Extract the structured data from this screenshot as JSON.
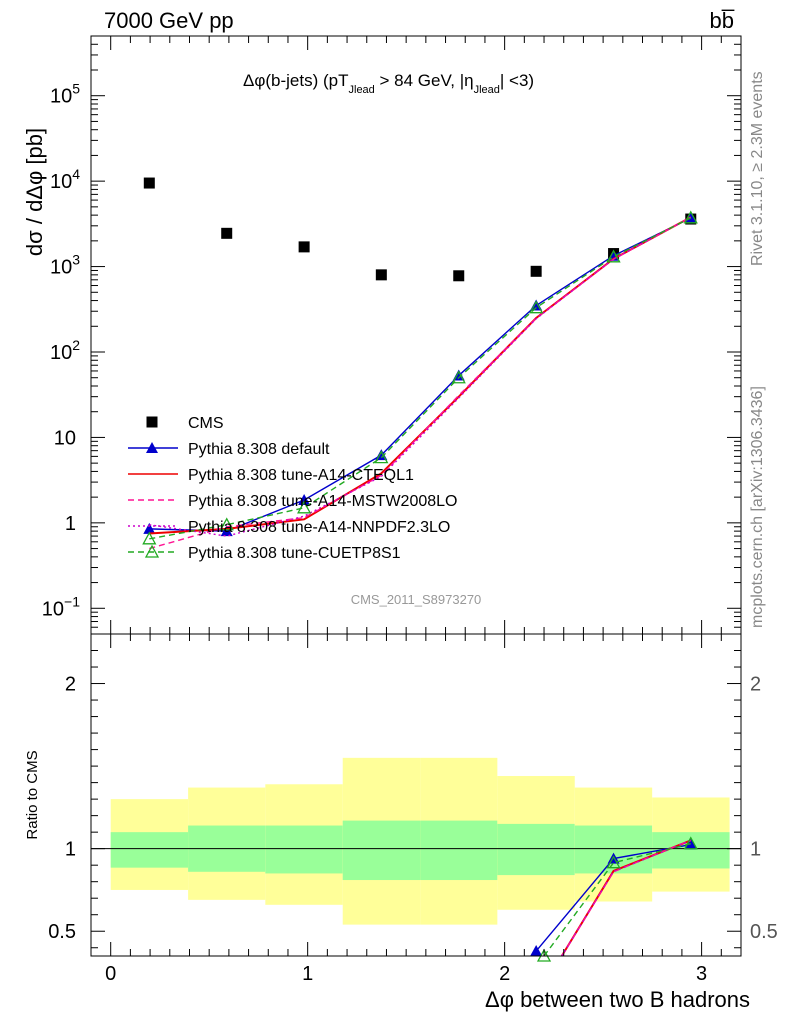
{
  "header": {
    "left": "7000 GeV pp",
    "right": "bb̅"
  },
  "side_text": {
    "rivet": "Rivet 3.1.10, ≥ 2.3M events",
    "mcplots": "mcplots.cern.ch [arXiv:1306.3436]"
  },
  "chart_data": [
    {
      "type": "line",
      "title": "Δφ(b-jets) (pT_Jlead > 84 GeV, |η_Jlead| <3)",
      "title_parts": {
        "p1": "Δφ(b-jets) (pT",
        "sub1": "Jlead",
        "p2": " >  84 GeV, |η",
        "sub2": "Jlead",
        "p3": "| <3)"
      },
      "watermark": "CMS_2011_S8973270",
      "ylabel": "dσ / dΔφ [pb]",
      "yscale": "log",
      "ylim": [
        0.05,
        500000
      ],
      "xlim": [
        -0.1,
        3.2
      ],
      "y_ticks": [
        {
          "v": 0.1,
          "base": "10",
          "exp": "−1"
        },
        {
          "v": 1,
          "base": "1",
          "exp": ""
        },
        {
          "v": 10,
          "base": "10",
          "exp": ""
        },
        {
          "v": 100,
          "base": "10",
          "exp": "2"
        },
        {
          "v": 1000,
          "base": "10",
          "exp": "3"
        },
        {
          "v": 10000,
          "base": "10",
          "exp": "4"
        },
        {
          "v": 100000,
          "base": "10",
          "exp": "5"
        }
      ],
      "x": [
        0.196,
        0.589,
        0.982,
        1.374,
        1.767,
        2.16,
        2.553,
        2.945
      ],
      "legend_position": "lower-left",
      "series": [
        {
          "name": "CMS",
          "color": "#000000",
          "style": "data",
          "marker": "square",
          "values": [
            9500,
            2450,
            1700,
            800,
            780,
            880,
            1420,
            3600
          ]
        },
        {
          "name": "Pythia 8.308 default",
          "color": "#0000cc",
          "style": "solid",
          "marker": "triangle",
          "values": [
            0.85,
            0.8,
            1.85,
            6.2,
            53,
            350,
            1340,
            3700
          ]
        },
        {
          "name": "Pythia 8.308 tune-A14-CTEQL1",
          "color": "#ee0000",
          "style": "solid",
          "marker": "none",
          "values": [
            0.75,
            0.85,
            1.1,
            3.8,
            30,
            250,
            1230,
            3780
          ]
        },
        {
          "name": "Pythia 8.308 tune-A14-MSTW2008LO",
          "color": "#ff1493",
          "style": "dashed",
          "marker": "none",
          "values": [
            0.5,
            0.9,
            1.15,
            3.6,
            31,
            248,
            1220,
            3790
          ]
        },
        {
          "name": "Pythia 8.308 tune-A14-NNPDF2.3LO",
          "color": "#cc00cc",
          "style": "dotted",
          "marker": "none",
          "values": [
            0.95,
            0.7,
            1.2,
            3.5,
            29,
            245,
            1225,
            3770
          ]
        },
        {
          "name": "Pythia 8.308 tune-CUETP8S1",
          "color": "#22aa22",
          "style": "dashed",
          "marker": "open-triangle",
          "values": [
            0.65,
            0.95,
            1.5,
            5.8,
            50,
            330,
            1300,
            3720
          ]
        }
      ]
    },
    {
      "type": "line",
      "ylabel": "Ratio to CMS",
      "xlabel": "Δφ between two B hadrons",
      "ylim": [
        0.35,
        2.3
      ],
      "xlim": [
        -0.1,
        3.2
      ],
      "x_ticks": [
        0,
        1,
        2,
        3
      ],
      "y_ticks": [
        0.5,
        1,
        2
      ],
      "bin_edges": [
        0,
        0.393,
        0.785,
        1.178,
        1.571,
        1.963,
        2.356,
        2.749,
        3.142
      ],
      "band_inner": [
        [
          0.885,
          1.1
        ],
        [
          0.86,
          1.14
        ],
        [
          0.85,
          1.14
        ],
        [
          0.81,
          1.17
        ],
        [
          0.81,
          1.17
        ],
        [
          0.84,
          1.15
        ],
        [
          0.85,
          1.14
        ],
        [
          0.88,
          1.1
        ]
      ],
      "band_outer": [
        [
          0.75,
          1.3
        ],
        [
          0.69,
          1.37
        ],
        [
          0.66,
          1.39
        ],
        [
          0.54,
          1.55
        ],
        [
          0.54,
          1.55
        ],
        [
          0.63,
          1.44
        ],
        [
          0.68,
          1.37
        ],
        [
          0.74,
          1.31
        ]
      ],
      "ratio_series": [
        {
          "name": "Pythia 8.308 default",
          "color": "#0000cc",
          "style": "solid",
          "marker": "triangle",
          "x": [
            2.16,
            2.553,
            2.945
          ],
          "values": [
            0.38,
            0.94,
            1.025
          ]
        },
        {
          "name": "Pythia 8.308 tune-A14-CTEQL1",
          "color": "#ee0000",
          "style": "solid",
          "marker": "none",
          "x": [
            2.29,
            2.553,
            2.945
          ],
          "values": [
            0.35,
            0.865,
            1.05
          ]
        },
        {
          "name": "Pythia 8.308 tune-A14-MSTW2008LO",
          "color": "#ff1493",
          "style": "dashed",
          "marker": "none",
          "x": [
            2.29,
            2.553,
            2.945
          ],
          "values": [
            0.35,
            0.86,
            1.052
          ]
        },
        {
          "name": "Pythia 8.308 tune-A14-NNPDF2.3LO",
          "color": "#cc00cc",
          "style": "dotted",
          "marker": "none",
          "x": [
            2.29,
            2.553,
            2.945
          ],
          "values": [
            0.35,
            0.862,
            1.048
          ]
        },
        {
          "name": "Pythia 8.308 tune-CUETP8S1",
          "color": "#22aa22",
          "style": "dashed",
          "marker": "open-triangle",
          "x": [
            2.2,
            2.553,
            2.945
          ],
          "values": [
            0.35,
            0.915,
            1.03
          ]
        }
      ]
    }
  ]
}
